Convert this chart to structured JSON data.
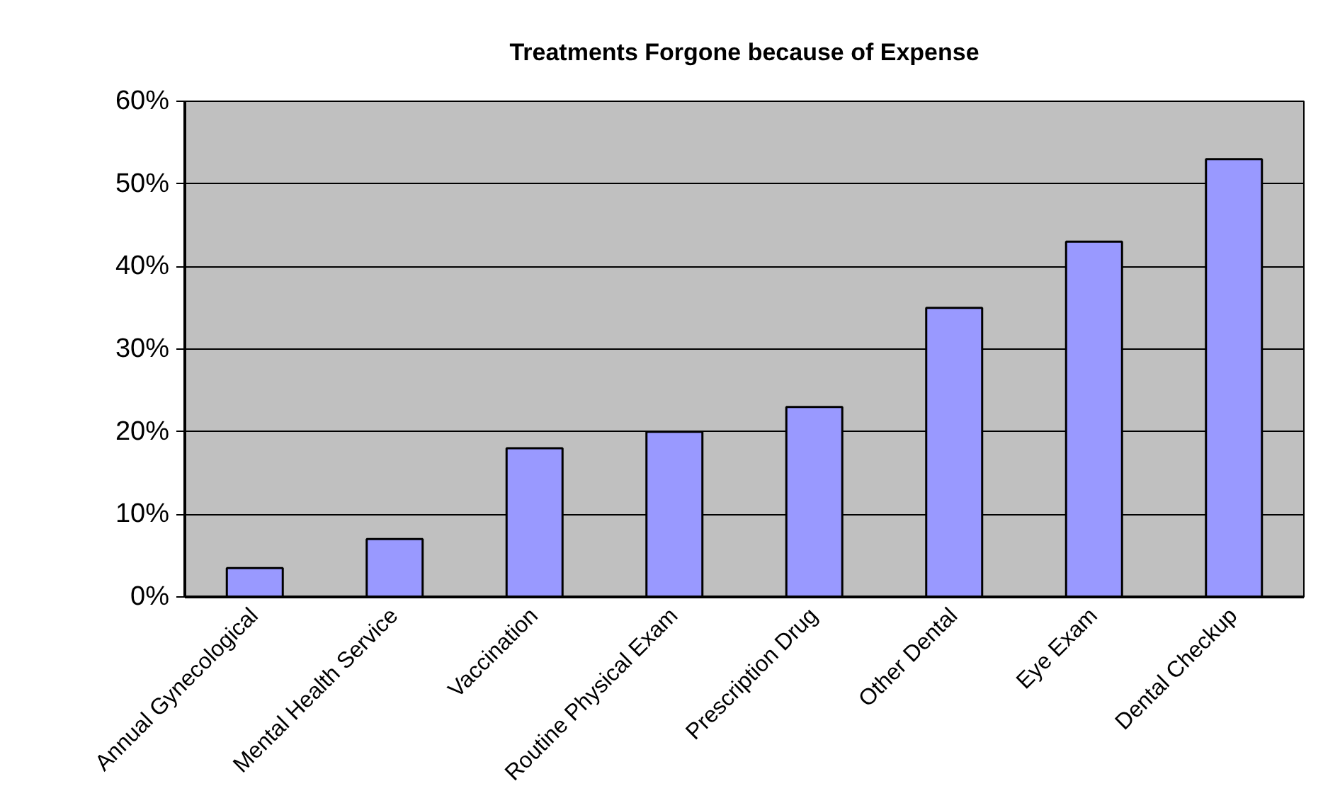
{
  "chart_data": {
    "type": "bar",
    "title": "Treatments Forgone because of Expense",
    "categories": [
      "Annual Gynecological",
      "Mental Health Service",
      "Vaccination",
      "Routine Physical Exam",
      "Prescription Drug",
      "Other Dental",
      "Eye Exam",
      "Dental Checkup"
    ],
    "values": [
      3.5,
      7,
      18,
      20,
      23,
      35,
      43,
      53
    ],
    "color": "#9999ff",
    "ylim": [
      0,
      60
    ],
    "yticks": [
      {
        "value": 0,
        "label": "0%"
      },
      {
        "value": 10,
        "label": "10%"
      },
      {
        "value": 20,
        "label": "20%"
      },
      {
        "value": 30,
        "label": "30%"
      },
      {
        "value": 40,
        "label": "40%"
      },
      {
        "value": 50,
        "label": "50%"
      },
      {
        "value": 60,
        "label": "60%"
      }
    ],
    "grid": "y"
  }
}
